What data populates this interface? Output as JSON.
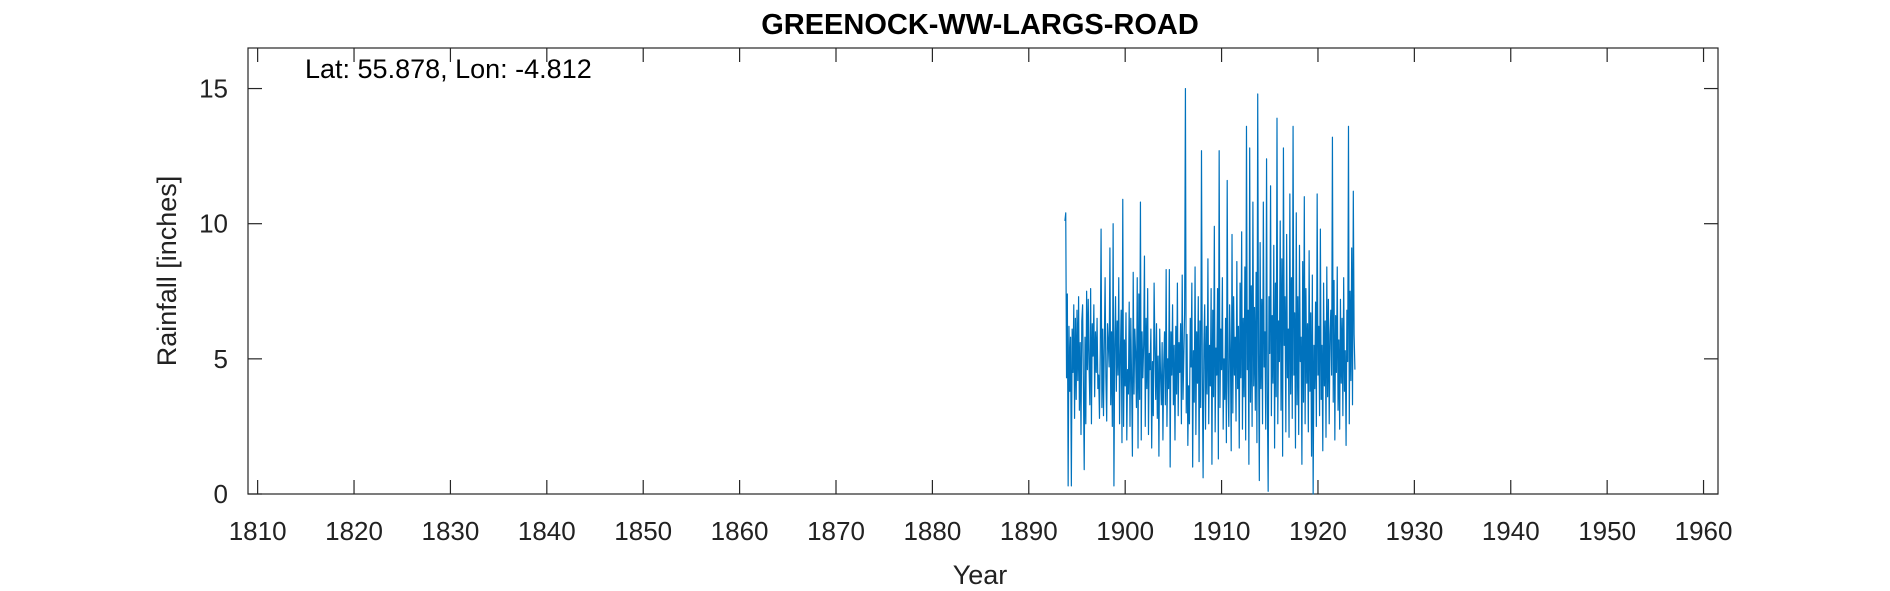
{
  "chart_data": {
    "type": "line",
    "title": "GREENOCK-WW-LARGS-ROAD",
    "annotation": "Lat: 55.878, Lon: -4.812",
    "xlabel": "Year",
    "ylabel": "Rainfall [inches]",
    "xlim": [
      1809,
      1961.5
    ],
    "ylim": [
      0,
      16.5
    ],
    "xticks": [
      1810,
      1820,
      1830,
      1840,
      1850,
      1860,
      1870,
      1880,
      1890,
      1900,
      1910,
      1920,
      1930,
      1940,
      1950,
      1960
    ],
    "yticks": [
      0,
      5,
      10,
      15
    ],
    "grid": false,
    "line_color": "#0072bd",
    "series": [
      {
        "frequency": "monthly",
        "x_start": 1893.75,
        "x_step": 0.0833333,
        "values": [
          10.1,
          10.4,
          4.3,
          7.4,
          0.3,
          6.2,
          3.8,
          5.8,
          0.3,
          6.1,
          4.5,
          7.0,
          2.8,
          6.5,
          3.5,
          6.8,
          4.2,
          7.3,
          3.1,
          5.6,
          2.2,
          6.4,
          7.0,
          4.0,
          0.9,
          5.8,
          2.6,
          7.5,
          4.6,
          7.2,
          4.8,
          3.3,
          7.6,
          2.6,
          6.3,
          5.1,
          7.0,
          3.6,
          6.0,
          4.5,
          6.5,
          3.9,
          4.4,
          2.8,
          5.3,
          9.8,
          3.2,
          6.1,
          2.9,
          5.5,
          8.0,
          4.3,
          2.7,
          6.3,
          5.6,
          4.7,
          9.1,
          3.3,
          6.0,
          2.5,
          10.0,
          0.3,
          5.5,
          7.3,
          3.8,
          6.4,
          4.4,
          8.0,
          2.6,
          5.1,
          6.8,
          1.9,
          10.9,
          2.5,
          5.7,
          4.0,
          6.7,
          2.0,
          4.6,
          3.7,
          7.1,
          2.5,
          6.5,
          4.1,
          1.4,
          8.2,
          3.7,
          6.1,
          5.2,
          3.2,
          8.0,
          1.7,
          7.4,
          3.5,
          10.8,
          2.0,
          6.0,
          4.3,
          5.5,
          8.8,
          2.5,
          6.5,
          3.9,
          7.6,
          2.2,
          5.2,
          4.6,
          6.1,
          1.7,
          4.9,
          2.9,
          7.8,
          5.4,
          3.5,
          6.3,
          2.8,
          5.1,
          1.4,
          6.1,
          4.4,
          3.3,
          5.6,
          2.0,
          4.8,
          6.0,
          3.3,
          8.3,
          2.5,
          5.0,
          3.9,
          8.3,
          1.0,
          6.0,
          4.4,
          7.0,
          3.3,
          5.5,
          2.0,
          6.2,
          3.7,
          7.8,
          2.9,
          5.6,
          4.5,
          6.3,
          2.6,
          8.1,
          3.5,
          5.1,
          6.7,
          15.0,
          3.0,
          5.9,
          1.8,
          4.0,
          2.6,
          6.5,
          4.7,
          7.8,
          1.0,
          5.3,
          3.4,
          8.4,
          2.2,
          6.0,
          4.1,
          7.3,
          1.2,
          6.4,
          3.2,
          12.7,
          4.5,
          0.6,
          5.5,
          7.0,
          2.4,
          6.2,
          3.7,
          8.7,
          2.6,
          5.5,
          4.0,
          7.6,
          1.1,
          6.8,
          3.6,
          9.9,
          2.3,
          5.4,
          4.4,
          7.6,
          1.3,
          12.7,
          3.2,
          6.1,
          4.6,
          8.0,
          2.4,
          5.0,
          3.5,
          6.5,
          1.9,
          11.6,
          4.2,
          2.5,
          7.0,
          5.3,
          1.6,
          9.6,
          3.0,
          7.3,
          4.4,
          5.8,
          2.7,
          8.6,
          3.9,
          6.2,
          1.7,
          7.8,
          4.3,
          9.7,
          2.4,
          6.5,
          3.6,
          8.4,
          2.0,
          13.6,
          4.6,
          6.8,
          1.1,
          12.8,
          3.4,
          7.7,
          2.5,
          10.8,
          4.0,
          6.9,
          3.1,
          8.2,
          1.9,
          14.8,
          5.2,
          0.5,
          9.3,
          3.9,
          7.2,
          2.6,
          10.8,
          4.7,
          6.0,
          2.4,
          12.4,
          3.4,
          0.1,
          7.3,
          5.2,
          11.4,
          2.9,
          6.6,
          4.1,
          9.2,
          1.7,
          7.8,
          3.6,
          13.9,
          2.6,
          6.4,
          4.9,
          10.1,
          3.1,
          8.7,
          1.4,
          12.8,
          5.5,
          7.3,
          2.3,
          9.6,
          4.3,
          6.1,
          2.1,
          11.1,
          3.7,
          8.0,
          2.8,
          13.6,
          4.4,
          6.7,
          1.7,
          10.4,
          3.3,
          7.3,
          2.2,
          9.2,
          4.9,
          5.8,
          1.1,
          8.6,
          3.4,
          11.0,
          2.6,
          7.6,
          4.1,
          6.3,
          2.3,
          9.0,
          3.8,
          6.7,
          1.4,
          8.1,
          0.0,
          5.5,
          3.9,
          7.1,
          2.5,
          11.1,
          4.4,
          6.2,
          2.9,
          9.8,
          3.5,
          5.5,
          1.6,
          7.8,
          4.0,
          6.4,
          2.1,
          8.4,
          3.6,
          7.2,
          2.6,
          5.9,
          6.8,
          4.4,
          13.2,
          3.4,
          7.9,
          2.0,
          6.6,
          4.5,
          8.4,
          3.1,
          5.7,
          2.4,
          7.2,
          4.1,
          6.5,
          2.9,
          8.0,
          3.8,
          5.3,
          1.8,
          6.8,
          4.9,
          13.6,
          2.6,
          7.5,
          4.2,
          9.1,
          3.3,
          11.2,
          5.9,
          4.6
        ]
      }
    ]
  }
}
